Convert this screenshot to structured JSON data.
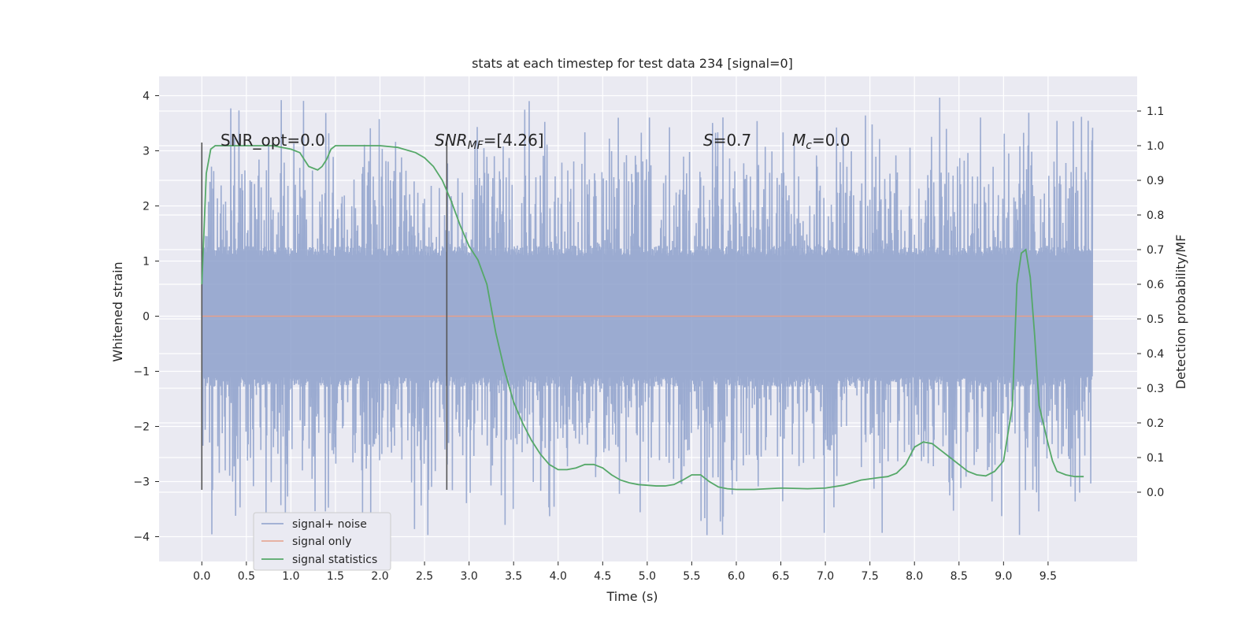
{
  "chart_data": {
    "type": "line",
    "title": "stats at each timestep for test data 234 [signal=0]",
    "xlabel": "Time (s)",
    "ylabel_left": "Whitened strain",
    "ylabel_right": "Detection probability/MF",
    "xlim": [
      -0.48,
      10.5
    ],
    "ylim_left": [
      -4.45,
      4.35
    ],
    "ylim_right": [
      -0.2,
      1.2
    ],
    "x_ticks": [
      "0.0",
      "0.5",
      "1.0",
      "1.5",
      "2.0",
      "2.5",
      "3.0",
      "3.5",
      "4.0",
      "4.5",
      "5.0",
      "5.5",
      "6.0",
      "6.5",
      "7.0",
      "7.5",
      "8.0",
      "8.5",
      "9.0",
      "9.5"
    ],
    "y_ticks_left": [
      "−4",
      "−3",
      "−2",
      "−1",
      "0",
      "1",
      "2",
      "3",
      "4"
    ],
    "y_ticks_right": [
      "0.0",
      "0.1",
      "0.2",
      "0.3",
      "0.4",
      "0.5",
      "0.6",
      "0.7",
      "0.8",
      "0.9",
      "1.0",
      "1.1"
    ],
    "grid": true,
    "legend_position": "lower-left",
    "colors": {
      "signal_noise": "#8da0cb",
      "signal_only": "#e5a08a",
      "signal_statistics": "#55a868",
      "plot_background": "#eaeaf2",
      "grid": "#ffffff",
      "vertical_markers": "#555555"
    },
    "annotations": {
      "snr_opt": "SNR_opt=0.0",
      "snr_mf_main": "SNR",
      "snr_mf_sub": "MF",
      "snr_mf_value": "=[4.26]",
      "s_main": "S",
      "s_value": "=0.7",
      "mc_main": "M",
      "mc_sub": "c",
      "mc_value": "=0.0"
    },
    "vertical_markers_x": [
      0.0,
      2.75
    ],
    "series": [
      {
        "name": "signal+ noise",
        "axis": "left",
        "x_range": [
          0.0,
          10.0
        ],
        "envelope": {
          "core": 1.28,
          "typical_peak": 2.6,
          "max": 4.0,
          "min": -4.05
        }
      },
      {
        "name": "signal only",
        "axis": "left",
        "x": [
          0.0,
          10.0
        ],
        "y": [
          0.0,
          0.0
        ]
      },
      {
        "name": "signal statistics",
        "axis": "right",
        "x": [
          0.0,
          0.05,
          0.1,
          0.15,
          0.2,
          0.3,
          0.4,
          0.5,
          0.6,
          0.7,
          0.8,
          0.9,
          1.0,
          1.1,
          1.15,
          1.2,
          1.3,
          1.35,
          1.4,
          1.45,
          1.5,
          1.6,
          1.8,
          2.0,
          2.2,
          2.4,
          2.5,
          2.6,
          2.7,
          2.8,
          2.9,
          3.0,
          3.1,
          3.2,
          3.3,
          3.4,
          3.5,
          3.6,
          3.7,
          3.8,
          3.9,
          4.0,
          4.1,
          4.2,
          4.3,
          4.4,
          4.5,
          4.6,
          4.7,
          4.8,
          4.9,
          5.0,
          5.1,
          5.2,
          5.3,
          5.4,
          5.5,
          5.6,
          5.7,
          5.8,
          5.9,
          6.0,
          6.2,
          6.5,
          6.8,
          7.0,
          7.2,
          7.4,
          7.6,
          7.7,
          7.8,
          7.9,
          8.0,
          8.1,
          8.2,
          8.3,
          8.4,
          8.5,
          8.6,
          8.7,
          8.8,
          8.9,
          9.0,
          9.1,
          9.15,
          9.2,
          9.25,
          9.3,
          9.35,
          9.4,
          9.5,
          9.55,
          9.6,
          9.7,
          9.8,
          9.9
        ],
        "y": [
          0.6,
          0.92,
          0.99,
          1.0,
          1.0,
          1.0,
          1.0,
          1.0,
          1.0,
          1.0,
          1.0,
          0.995,
          0.99,
          0.98,
          0.96,
          0.94,
          0.93,
          0.94,
          0.96,
          0.99,
          1.0,
          1.0,
          1.0,
          1.0,
          0.995,
          0.98,
          0.965,
          0.94,
          0.9,
          0.84,
          0.77,
          0.71,
          0.67,
          0.6,
          0.46,
          0.35,
          0.26,
          0.2,
          0.15,
          0.11,
          0.08,
          0.065,
          0.065,
          0.07,
          0.08,
          0.08,
          0.07,
          0.05,
          0.035,
          0.027,
          0.022,
          0.02,
          0.018,
          0.018,
          0.022,
          0.035,
          0.05,
          0.05,
          0.03,
          0.015,
          0.01,
          0.008,
          0.008,
          0.012,
          0.01,
          0.012,
          0.02,
          0.035,
          0.042,
          0.045,
          0.055,
          0.08,
          0.13,
          0.145,
          0.14,
          0.12,
          0.1,
          0.08,
          0.06,
          0.05,
          0.047,
          0.06,
          0.09,
          0.25,
          0.6,
          0.69,
          0.7,
          0.62,
          0.45,
          0.25,
          0.14,
          0.09,
          0.06,
          0.05,
          0.045,
          0.045
        ]
      }
    ]
  }
}
